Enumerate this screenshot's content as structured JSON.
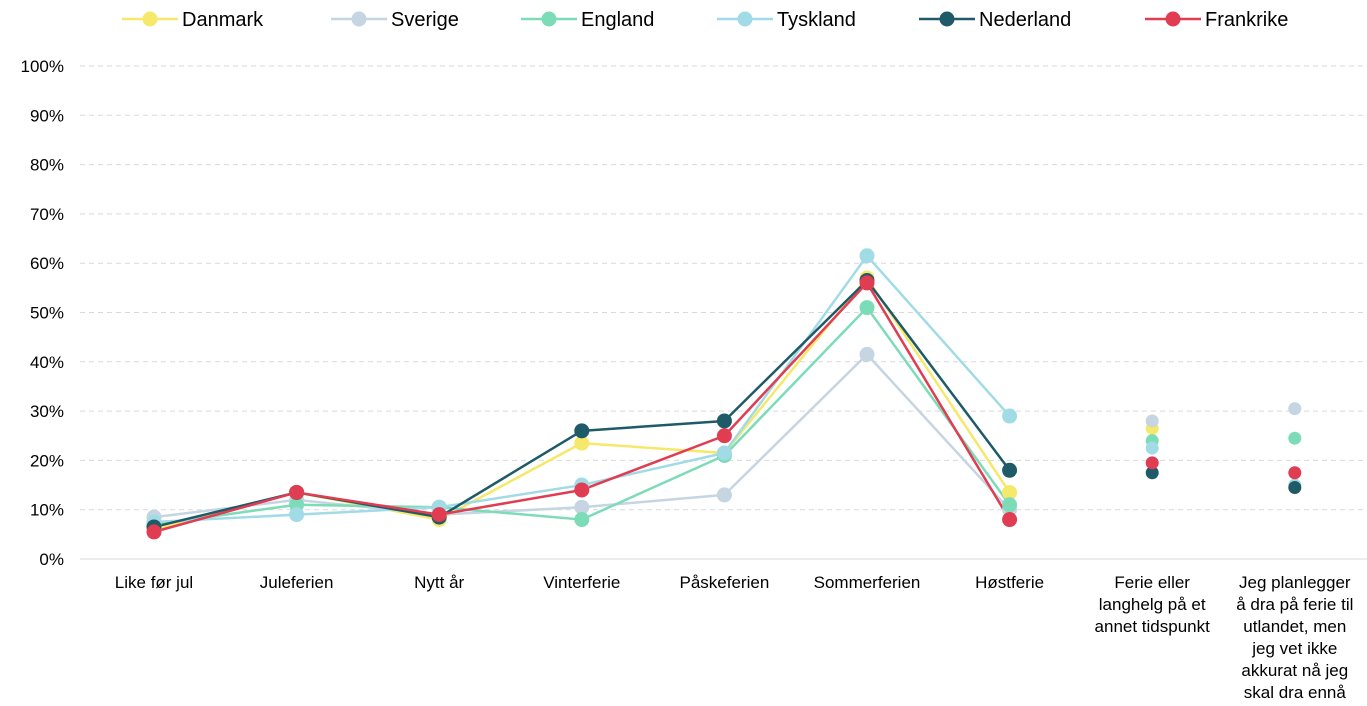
{
  "chart_data": {
    "type": "line",
    "categories": [
      [
        "Like før jul"
      ],
      [
        "Juleferien"
      ],
      [
        "Nytt år"
      ],
      [
        "Vinterferie"
      ],
      [
        "Påskeferien"
      ],
      [
        "Sommerferien"
      ],
      [
        "Høstferie"
      ],
      [
        "Ferie eller",
        "langhelg på et",
        "annet tidspunkt"
      ],
      [
        "Jeg planlegger",
        "å dra på ferie til",
        "utlandet, men",
        "jeg vet ikke",
        "akkurat nå jeg",
        "skal dra ennå"
      ]
    ],
    "line_categories_count": 7,
    "ylim": [
      0,
      100
    ],
    "yticks": [
      "0%",
      "10%",
      "20%",
      "30%",
      "40%",
      "50%",
      "60%",
      "70%",
      "80%",
      "90%",
      "100%"
    ],
    "grid": true,
    "legend_position": "top",
    "series": [
      {
        "name": "Danmark",
        "color": "#f5e86a",
        "values": [
          6,
          13.5,
          8,
          23.5,
          21.5,
          57,
          13.5,
          26.5,
          14.5
        ]
      },
      {
        "name": "Sverige",
        "color": "#c5d5e2",
        "values": [
          8.5,
          12,
          9,
          10.5,
          13,
          41.5,
          10,
          28,
          30.5
        ]
      },
      {
        "name": "England",
        "color": "#7ddcb8",
        "values": [
          7,
          11,
          10.5,
          8,
          21,
          51,
          11,
          24,
          24.5
        ]
      },
      {
        "name": "Tyskland",
        "color": "#a1dbe6",
        "values": [
          7.5,
          9,
          10.5,
          15,
          21.5,
          61.5,
          29,
          22.5,
          15
        ]
      },
      {
        "name": "Nederland",
        "color": "#1e5a68",
        "values": [
          6.5,
          13.5,
          8.5,
          26,
          28,
          56.5,
          18,
          17.5,
          14.5
        ]
      },
      {
        "name": "Frankrike",
        "color": "#e03c52",
        "values": [
          5.5,
          13.5,
          9,
          14,
          25,
          56,
          8,
          19.5,
          17.5
        ]
      }
    ]
  }
}
